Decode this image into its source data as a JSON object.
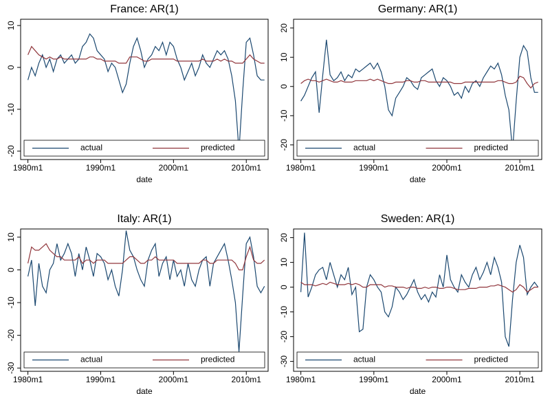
{
  "chart_data": [
    {
      "type": "line",
      "title": "France: AR(1)",
      "xlabel": "date",
      "x": [
        1980,
        1980.5,
        1981,
        1981.5,
        1982,
        1982.5,
        1983,
        1983.5,
        1984,
        1984.5,
        1985,
        1985.5,
        1986,
        1986.5,
        1987,
        1987.5,
        1988,
        1988.5,
        1989,
        1989.5,
        1990,
        1990.5,
        1991,
        1991.5,
        1992,
        1992.5,
        1993,
        1993.5,
        1994,
        1994.5,
        1995,
        1995.5,
        1996,
        1996.5,
        1997,
        1997.5,
        1998,
        1998.5,
        1999,
        1999.5,
        2000,
        2000.5,
        2001,
        2001.5,
        2002,
        2002.5,
        2003,
        2003.5,
        2004,
        2004.5,
        2005,
        2005.5,
        2006,
        2006.5,
        2007,
        2007.5,
        2008,
        2008.5,
        2009,
        2009.5,
        2010,
        2010.5,
        2011,
        2011.5,
        2012,
        2012.5
      ],
      "series": [
        {
          "name": "actual",
          "color": "#1a476f",
          "values": [
            -3,
            0,
            -2,
            1,
            3,
            0,
            2,
            -1,
            2,
            3,
            1,
            2,
            3,
            1,
            2,
            5,
            6,
            8,
            7,
            4,
            3,
            2,
            -1,
            1,
            0,
            -3,
            -6,
            -4,
            1,
            5,
            7,
            4,
            0,
            2,
            3,
            5,
            4,
            6,
            3,
            6,
            5,
            2,
            0,
            -3,
            -1,
            1,
            -2,
            0,
            3,
            1,
            0,
            2,
            4,
            3,
            4,
            2,
            -2,
            -8,
            -20,
            -6,
            6,
            7,
            3,
            -2,
            -3,
            -3
          ]
        },
        {
          "name": "predicted",
          "color": "#90353b",
          "values": [
            3,
            5,
            4,
            3,
            2.5,
            2,
            2.5,
            2,
            2,
            2.5,
            2,
            2,
            2,
            2,
            2,
            2,
            2,
            2.5,
            2.5,
            2,
            2,
            1.5,
            1.5,
            1.5,
            1.5,
            1,
            1,
            1,
            2.5,
            2.5,
            2.5,
            2,
            1.5,
            1.5,
            2,
            2,
            2,
            2,
            2,
            2,
            2,
            1.5,
            1.5,
            1.5,
            1.5,
            1.5,
            1.5,
            1.5,
            2,
            1.5,
            1.5,
            1.5,
            2,
            1.5,
            2,
            1.5,
            1.5,
            1,
            1,
            1,
            2,
            3,
            2,
            1.5,
            1,
            1
          ]
        }
      ],
      "xlim": [
        1979,
        2013
      ],
      "xticks": [
        {
          "value": 1980,
          "label": "1980m1"
        },
        {
          "value": 1990,
          "label": "1990m1"
        },
        {
          "value": 2000,
          "label": "2000m1"
        },
        {
          "value": 2010,
          "label": "2010m1"
        }
      ],
      "ylim": [
        -22,
        11.5
      ],
      "yticks": [
        -20,
        -10,
        0,
        10
      ],
      "legend": "bottom"
    },
    {
      "type": "line",
      "title": "Germany: AR(1)",
      "xlabel": "date",
      "x": [
        1980,
        1980.5,
        1981,
        1981.5,
        1982,
        1982.5,
        1983,
        1983.5,
        1984,
        1984.5,
        1985,
        1985.5,
        1986,
        1986.5,
        1987,
        1987.5,
        1988,
        1988.5,
        1989,
        1989.5,
        1990,
        1990.5,
        1991,
        1991.5,
        1992,
        1992.5,
        1993,
        1993.5,
        1994,
        1994.5,
        1995,
        1995.5,
        1996,
        1996.5,
        1997,
        1997.5,
        1998,
        1998.5,
        1999,
        1999.5,
        2000,
        2000.5,
        2001,
        2001.5,
        2002,
        2002.5,
        2003,
        2003.5,
        2004,
        2004.5,
        2005,
        2005.5,
        2006,
        2006.5,
        2007,
        2007.5,
        2008,
        2008.5,
        2009,
        2009.5,
        2010,
        2010.5,
        2011,
        2011.5,
        2012,
        2012.5
      ],
      "series": [
        {
          "name": "actual",
          "color": "#1a476f",
          "values": [
            -5,
            -3,
            0,
            3,
            5,
            -9,
            4,
            16,
            4,
            2,
            3,
            5,
            2,
            4,
            3,
            6,
            5,
            6,
            7,
            8,
            6,
            8,
            5,
            0,
            -8,
            -10,
            -4,
            -2,
            0,
            3,
            2,
            0,
            -1,
            3,
            4,
            5,
            6,
            2,
            0,
            3,
            2,
            0,
            -3,
            -2,
            -4,
            0,
            -2,
            1,
            2,
            0,
            3,
            5,
            7,
            6,
            8,
            4,
            -3,
            -8,
            -22,
            -5,
            10,
            14,
            12,
            3,
            -2,
            -2
          ]
        },
        {
          "name": "predicted",
          "color": "#90353b",
          "values": [
            1,
            2,
            2.5,
            2,
            2,
            1.5,
            2,
            2.5,
            2,
            1.5,
            1.5,
            2,
            1.5,
            1.5,
            1.5,
            2,
            2,
            2,
            2,
            2.5,
            2,
            2.5,
            2,
            1.5,
            1,
            1,
            1.5,
            1.5,
            1.5,
            2,
            2,
            1.5,
            1.5,
            2,
            2,
            1.5,
            1.5,
            1.5,
            1.5,
            1.5,
            1.5,
            1.5,
            1,
            1,
            1,
            1.5,
            1.5,
            1.5,
            1.5,
            1.5,
            1.5,
            1.5,
            1.5,
            1.5,
            2,
            2,
            1.5,
            1,
            1,
            1.5,
            3.5,
            3,
            1,
            -0.5,
            1,
            1.5
          ]
        }
      ],
      "xlim": [
        1979,
        2013
      ],
      "xticks": [
        {
          "value": 1980,
          "label": "1980m1"
        },
        {
          "value": 1990,
          "label": "1990m1"
        },
        {
          "value": 2000,
          "label": "2000m1"
        },
        {
          "value": 2010,
          "label": "2010m1"
        }
      ],
      "ylim": [
        -25,
        23
      ],
      "yticks": [
        -20,
        -10,
        0,
        10,
        20
      ],
      "legend": "bottom"
    },
    {
      "type": "line",
      "title": "Italy: AR(1)",
      "xlabel": "date",
      "x": [
        1980,
        1980.5,
        1981,
        1981.5,
        1982,
        1982.5,
        1983,
        1983.5,
        1984,
        1984.5,
        1985,
        1985.5,
        1986,
        1986.5,
        1987,
        1987.5,
        1988,
        1988.5,
        1989,
        1989.5,
        1990,
        1990.5,
        1991,
        1991.5,
        1992,
        1992.5,
        1993,
        1993.5,
        1994,
        1994.5,
        1995,
        1995.5,
        1996,
        1996.5,
        1997,
        1997.5,
        1998,
        1998.5,
        1999,
        1999.5,
        2000,
        2000.5,
        2001,
        2001.5,
        2002,
        2002.5,
        2003,
        2003.5,
        2004,
        2004.5,
        2005,
        2005.5,
        2006,
        2006.5,
        2007,
        2007.5,
        2008,
        2008.5,
        2009,
        2009.5,
        2010,
        2010.5,
        2011,
        2011.5,
        2012,
        2012.5
      ],
      "series": [
        {
          "name": "actual",
          "color": "#1a476f",
          "values": [
            -2,
            3,
            -11,
            2,
            -5,
            -7,
            0,
            2,
            8,
            3,
            5,
            8,
            5,
            -2,
            5,
            0,
            7,
            3,
            -2,
            5,
            4,
            2,
            -3,
            0,
            -5,
            -8,
            0,
            12,
            6,
            4,
            0,
            -3,
            -5,
            3,
            6,
            8,
            -2,
            2,
            4,
            -3,
            3,
            -2,
            0,
            -5,
            2,
            -3,
            -5,
            0,
            3,
            4,
            -5,
            2,
            4,
            6,
            8,
            3,
            -3,
            -10,
            -25,
            -8,
            8,
            10,
            4,
            -5,
            -7,
            -5
          ]
        },
        {
          "name": "predicted",
          "color": "#90353b",
          "values": [
            2,
            7,
            6,
            6,
            7,
            8,
            6,
            5,
            4,
            4,
            3,
            3,
            3,
            3,
            4,
            2,
            3,
            3,
            2,
            3,
            3,
            3,
            2,
            2,
            2,
            2,
            2,
            3,
            4,
            4,
            3,
            2,
            2,
            3,
            3,
            4,
            3,
            3,
            3,
            3,
            3,
            2,
            2,
            2,
            2,
            2,
            2,
            2,
            3,
            3,
            2,
            2,
            3,
            3,
            3,
            3,
            3,
            2,
            0,
            0,
            4,
            7,
            3,
            2,
            2,
            3
          ]
        }
      ],
      "xlim": [
        1979,
        2013
      ],
      "xticks": [
        {
          "value": 1980,
          "label": "1980m1"
        },
        {
          "value": 1990,
          "label": "1990m1"
        },
        {
          "value": 2000,
          "label": "2000m1"
        },
        {
          "value": 2010,
          "label": "2010m1"
        }
      ],
      "ylim": [
        -31,
        12.5
      ],
      "yticks": [
        -30,
        -20,
        -10,
        0,
        10
      ],
      "legend": "bottom"
    },
    {
      "type": "line",
      "title": "Sweden: AR(1)",
      "xlabel": "date",
      "x": [
        1980,
        1980.5,
        1981,
        1981.5,
        1982,
        1982.5,
        1983,
        1983.5,
        1984,
        1984.5,
        1985,
        1985.5,
        1986,
        1986.5,
        1987,
        1987.5,
        1988,
        1988.5,
        1989,
        1989.5,
        1990,
        1990.5,
        1991,
        1991.5,
        1992,
        1992.5,
        1993,
        1993.5,
        1994,
        1994.5,
        1995,
        1995.5,
        1996,
        1996.5,
        1997,
        1997.5,
        1998,
        1998.5,
        1999,
        1999.5,
        2000,
        2000.5,
        2001,
        2001.5,
        2002,
        2002.5,
        2003,
        2003.5,
        2004,
        2004.5,
        2005,
        2005.5,
        2006,
        2006.5,
        2007,
        2007.5,
        2008,
        2008.5,
        2009,
        2009.5,
        2010,
        2010.5,
        2011,
        2011.5,
        2012,
        2012.5
      ],
      "series": [
        {
          "name": "actual",
          "color": "#1a476f",
          "values": [
            -2,
            22,
            -4,
            0,
            5,
            7,
            8,
            3,
            10,
            5,
            0,
            5,
            3,
            8,
            -3,
            0,
            -18,
            -17,
            0,
            5,
            3,
            0,
            -2,
            -10,
            -12,
            -8,
            0,
            -2,
            -5,
            -3,
            0,
            3,
            -2,
            -5,
            -3,
            -6,
            -2,
            -4,
            5,
            0,
            13,
            3,
            0,
            -2,
            5,
            2,
            0,
            5,
            8,
            3,
            6,
            10,
            5,
            12,
            8,
            2,
            -20,
            -24,
            -5,
            10,
            17,
            12,
            -3,
            0,
            2,
            0
          ]
        },
        {
          "name": "predicted",
          "color": "#90353b",
          "values": [
            2,
            1,
            1,
            1,
            0.5,
            1,
            1.5,
            1,
            2,
            1.5,
            1,
            1,
            1,
            1.5,
            1,
            1.5,
            1,
            0,
            0,
            1,
            1,
            1,
            1,
            0,
            0.5,
            0.5,
            0,
            0,
            0,
            -0.5,
            0,
            0,
            -0.5,
            -0.5,
            0,
            -0.5,
            0,
            0,
            -0.5,
            -0.5,
            0,
            0,
            -0.5,
            -1,
            -1,
            -1,
            -0.5,
            -0.5,
            -0.5,
            0,
            0,
            0,
            0.5,
            0.5,
            1,
            0.5,
            0,
            -1,
            -2,
            -1,
            1,
            0,
            -2,
            -1,
            0,
            0
          ]
        }
      ],
      "xlim": [
        1979,
        2013
      ],
      "xticks": [
        {
          "value": 1980,
          "label": "1980m1"
        },
        {
          "value": 1990,
          "label": "1990m1"
        },
        {
          "value": 2000,
          "label": "2000m1"
        },
        {
          "value": 2010,
          "label": "2010m1"
        }
      ],
      "ylim": [
        -34,
        23.5
      ],
      "yticks": [
        -30,
        -20,
        -10,
        0,
        10,
        20
      ],
      "legend": "bottom"
    }
  ]
}
